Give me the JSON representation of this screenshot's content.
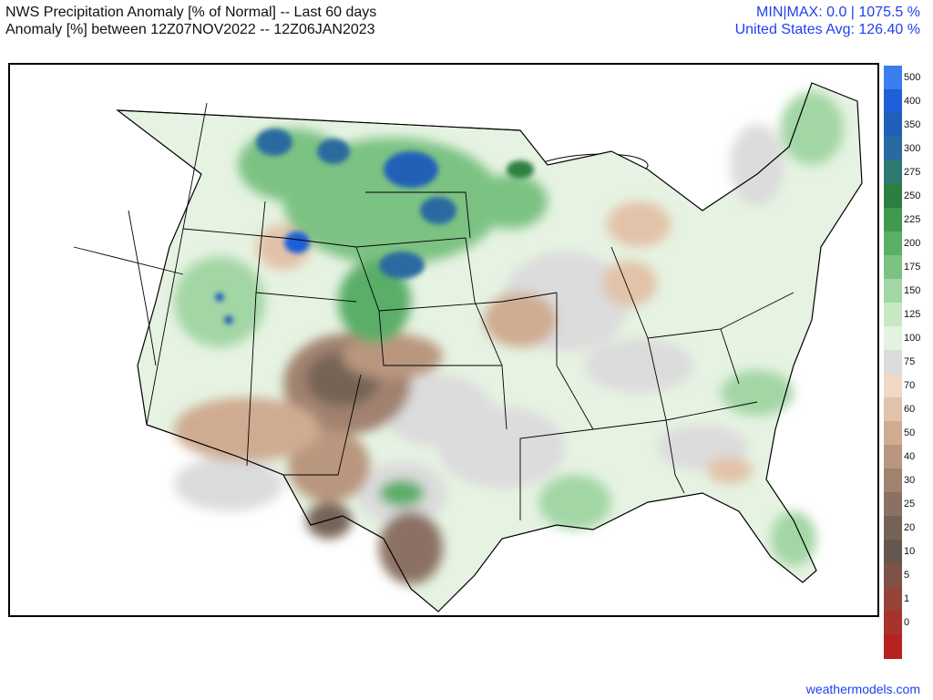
{
  "header": {
    "title_line1": "NWS Precipitation Anomaly [% of Normal] -- Last 60 days",
    "title_line2": "Anomaly [%] between 12Z07NOV2022 -- 12Z06JAN2023",
    "stats_line1": "MIN|MAX: 0.0 | 1075.5 %",
    "stats_line2": "United States Avg: 126.40 %"
  },
  "colorbar": {
    "levels": [
      {
        "label": "500",
        "color": "#3a7ef0"
      },
      {
        "label": "400",
        "color": "#1f5fd8"
      },
      {
        "label": "350",
        "color": "#2060b8"
      },
      {
        "label": "300",
        "color": "#2a6aa0"
      },
      {
        "label": "275",
        "color": "#2f7a70"
      },
      {
        "label": "250",
        "color": "#2d7f3f"
      },
      {
        "label": "225",
        "color": "#3f9a50"
      },
      {
        "label": "200",
        "color": "#5aae67"
      },
      {
        "label": "175",
        "color": "#7cc283"
      },
      {
        "label": "150",
        "color": "#a3d6a5"
      },
      {
        "label": "125",
        "color": "#c8e8c4"
      },
      {
        "label": "100",
        "color": "#e3f3df"
      },
      {
        "label": "75",
        "color": "#dcdcdc"
      },
      {
        "label": "70",
        "color": "#f0d8c6"
      },
      {
        "label": "60",
        "color": "#e2c2a8"
      },
      {
        "label": "50",
        "color": "#cfab91"
      },
      {
        "label": "40",
        "color": "#b9967e"
      },
      {
        "label": "30",
        "color": "#a1826f"
      },
      {
        "label": "25",
        "color": "#8b7163"
      },
      {
        "label": "20",
        "color": "#766357"
      },
      {
        "label": "10",
        "color": "#66574e"
      },
      {
        "label": "5",
        "color": "#7d5249"
      },
      {
        "label": "1",
        "color": "#944438"
      },
      {
        "label": "0",
        "color": "#a8332c"
      },
      {
        "label": "",
        "color": "#b5221f"
      }
    ]
  },
  "footer": {
    "credit": "weathermodels.com"
  }
}
